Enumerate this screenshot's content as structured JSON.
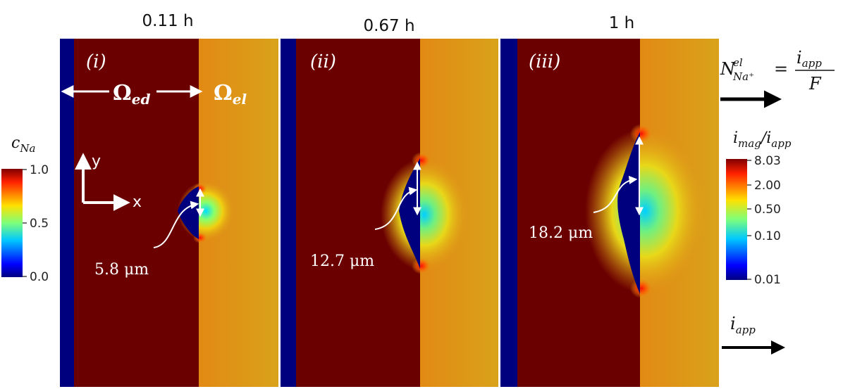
{
  "panels": [
    {
      "time": "0.11 h",
      "tag": "(i)",
      "dendrite_size": "5.8 μm"
    },
    {
      "time": "0.67 h",
      "tag": "(ii)",
      "dendrite_size": "12.7 μm"
    },
    {
      "time": "1 h",
      "tag": "(iii)",
      "dendrite_size": "18.2 μm"
    }
  ],
  "domains": {
    "electrode": {
      "symbol": "Ω",
      "subscript": "ed"
    },
    "electrolyte": {
      "symbol": "Ω",
      "subscript": "el"
    }
  },
  "axes": {
    "y": "y",
    "x": "x"
  },
  "left_colorbar": {
    "title": "c",
    "title_sub": "Na",
    "ticks": [
      "1.0",
      "0.5",
      "0.0"
    ]
  },
  "right_colorbar": {
    "title_num": "i",
    "title_num_sub": "mag",
    "title_sep": "/",
    "title_den": "i",
    "title_den_sub": "app",
    "ticks": [
      "8.03",
      "2.00",
      "0.50",
      "0.10",
      "0.01"
    ]
  },
  "boundary_flux": {
    "lhs": "N",
    "lhs_sup": "el",
    "lhs_sub": "Na⁺",
    "eq": "=",
    "num": "i",
    "num_sub": "app",
    "den": "F"
  },
  "current": {
    "label": "i",
    "label_sub": "app"
  },
  "colors": {
    "electrode": "#6b0000",
    "electrolyte": "#e09a16",
    "sodium_metal": "#00007e"
  }
}
